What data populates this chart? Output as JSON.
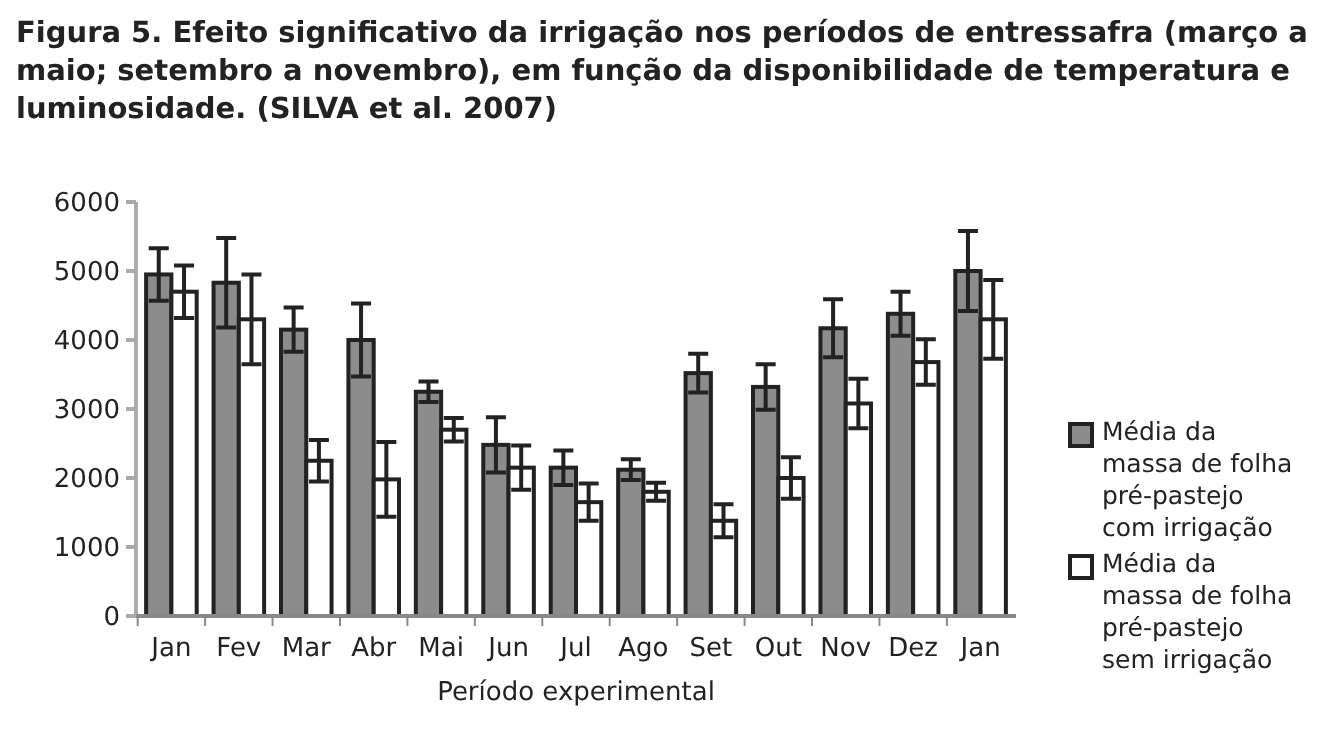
{
  "chart_data": {
    "type": "bar",
    "title": "Figura 5. Efeito significativo da irrigação nos períodos de entressafra (março a maio; setembro a novembro), em função da disponibilidade de temperatura e luminosidade. (SILVA et al. 2007)",
    "xlabel": "Período experimental",
    "categories": [
      "Jan",
      "Fev",
      "Mar",
      "Abr",
      "Mai",
      "Jun",
      "Jul",
      "Ago",
      "Set",
      "Out",
      "Nov",
      "Dez",
      "Jan"
    ],
    "series": [
      {
        "name": "Média da massa de folha pré-pastejo com irrigação",
        "color": "#8c8c8c",
        "values": [
          4950,
          4830,
          4150,
          4000,
          3250,
          2480,
          2150,
          2120,
          3520,
          3320,
          4170,
          4380,
          5000
        ],
        "errors": [
          380,
          650,
          320,
          530,
          150,
          400,
          250,
          150,
          280,
          330,
          420,
          320,
          580
        ]
      },
      {
        "name": "Média da massa de folha pré-pastejo sem irrigação",
        "color": "#ffffff",
        "values": [
          4700,
          4300,
          2250,
          1980,
          2700,
          2150,
          1650,
          1800,
          1380,
          2000,
          3080,
          3680,
          4300
        ],
        "errors": [
          380,
          650,
          300,
          540,
          170,
          320,
          270,
          130,
          240,
          300,
          360,
          330,
          570
        ]
      }
    ],
    "ylim": [
      0,
      6000
    ],
    "yticks": [
      0,
      1000,
      2000,
      3000,
      4000,
      5000,
      6000
    ],
    "grid": false,
    "legend": "right"
  }
}
